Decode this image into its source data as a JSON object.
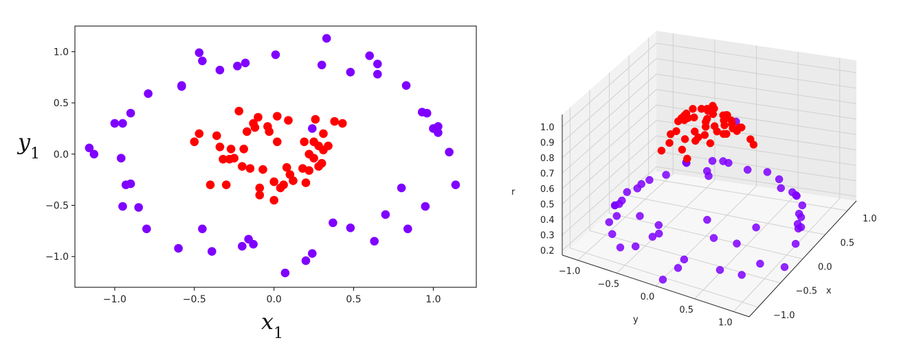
{
  "chart_data": [
    {
      "type": "scatter",
      "xlabel": "x",
      "xlabel_sub": "1",
      "ylabel": "y",
      "ylabel_sub": "1",
      "xlim": [
        -1.25,
        1.27
      ],
      "ylim": [
        -1.3,
        1.25
      ],
      "x_ticks": [
        -1.0,
        -0.5,
        0.0,
        0.5,
        1.0
      ],
      "x_tick_labels": [
        "−1.0",
        "−0.5",
        "0.0",
        "0.5",
        "1.0"
      ],
      "y_ticks": [
        -1.0,
        -0.5,
        0.0,
        0.5,
        1.0
      ],
      "y_tick_labels": [
        "−1.0",
        "−0.5",
        "0.0",
        "0.5",
        "1.0"
      ],
      "grid": false,
      "colors": {
        "outer": "#7f00ff",
        "inner": "#ff0000"
      },
      "series": [
        {
          "color": "#7f00ff",
          "x": [
            -1.16,
            -1.13,
            -1.0,
            -0.95,
            -0.9,
            -0.96,
            -0.93,
            -0.9,
            -0.95,
            -0.85,
            -0.8,
            -0.79,
            -0.6,
            -0.58,
            -0.58,
            -0.47,
            -0.45,
            -0.45,
            -0.39,
            -0.34,
            -0.23,
            -0.2,
            -0.18,
            -0.16,
            -0.13,
            0.01,
            0.07,
            0.2,
            0.24,
            0.24,
            0.3,
            0.33,
            0.37,
            0.48,
            0.48,
            0.6,
            0.63,
            0.65,
            0.65,
            0.7,
            0.8,
            0.83,
            0.84,
            0.93,
            0.95,
            0.96,
            1.0,
            1.03,
            1.03,
            1.1,
            1.14
          ],
          "y": [
            0.06,
            0.0,
            0.3,
            0.3,
            0.4,
            -0.04,
            -0.3,
            -0.29,
            -0.51,
            -0.52,
            -0.73,
            0.59,
            -0.92,
            0.66,
            0.67,
            0.99,
            0.91,
            -0.73,
            -0.95,
            0.82,
            0.86,
            -0.9,
            0.89,
            -0.83,
            -0.88,
            0.97,
            -1.16,
            -1.04,
            -0.97,
            0.25,
            0.87,
            1.13,
            -0.67,
            0.8,
            -0.72,
            0.96,
            -0.85,
            0.88,
            0.78,
            -0.59,
            -0.33,
            0.67,
            -0.73,
            0.41,
            -0.51,
            0.4,
            0.25,
            0.21,
            0.27,
            0.02,
            -0.3
          ]
        },
        {
          "color": "#ff0000",
          "x": [
            -0.5,
            -0.47,
            -0.4,
            -0.36,
            -0.34,
            -0.32,
            -0.3,
            -0.28,
            -0.27,
            -0.25,
            -0.22,
            -0.2,
            -0.19,
            -0.17,
            -0.15,
            -0.13,
            -0.12,
            -0.1,
            -0.09,
            -0.09,
            -0.07,
            -0.04,
            -0.03,
            0.0,
            0.0,
            0.02,
            0.02,
            0.04,
            0.06,
            0.08,
            0.09,
            0.1,
            0.12,
            0.18,
            0.19,
            0.2,
            0.22,
            0.22,
            0.25,
            0.25,
            0.26,
            0.28,
            0.28,
            0.3,
            0.31,
            0.31,
            0.34,
            0.38,
            0.43
          ],
          "y": [
            0.12,
            0.2,
            -0.3,
            0.18,
            0.07,
            -0.05,
            -0.3,
            -0.05,
            0.05,
            -0.04,
            0.42,
            -0.12,
            0.05,
            0.22,
            -0.14,
            0.3,
            0.26,
            0.36,
            -0.33,
            -0.4,
            -0.15,
            0.27,
            0.22,
            -0.45,
            -0.27,
            0.12,
            0.37,
            -0.33,
            -0.3,
            -0.13,
            0.33,
            -0.2,
            -0.26,
            -0.14,
            0.12,
            -0.28,
            0.0,
            -0.16,
            -0.04,
            0.12,
            0.34,
            -0.12,
            0.08,
            -0.09,
            0.2,
            0.04,
            0.08,
            0.32,
            0.3
          ]
        }
      ]
    },
    {
      "type": "scatter",
      "subtype": "3d",
      "xlabel": "x",
      "ylabel": "y",
      "zlabel": "r",
      "xlim": [
        -1.2,
        1.2
      ],
      "ylim": [
        -1.2,
        1.2
      ],
      "zlim": [
        0.2,
        1.0
      ],
      "x_ticks": [
        -1.0,
        -0.5,
        0.0,
        0.5,
        1.0
      ],
      "x_tick_labels": [
        "−1.0",
        "−0.5",
        "0.0",
        "0.5",
        "1.0"
      ],
      "y_ticks": [
        -1.0,
        -0.5,
        0.0,
        0.5,
        1.0
      ],
      "y_tick_labels": [
        "−1.0",
        "−0.5",
        "0.0",
        "0.5",
        "1.0"
      ],
      "z_ticks": [
        0.2,
        0.3,
        0.4,
        0.5,
        0.6,
        0.7,
        0.8,
        0.9,
        1.0
      ],
      "z_tick_labels": [
        "0.2",
        "0.3",
        "0.4",
        "0.5",
        "0.6",
        "0.7",
        "0.8",
        "0.9",
        "1.0"
      ],
      "grid": true,
      "note_colors": {
        "outer": "#7f00ff",
        "inner": "#ff0000"
      }
    }
  ]
}
